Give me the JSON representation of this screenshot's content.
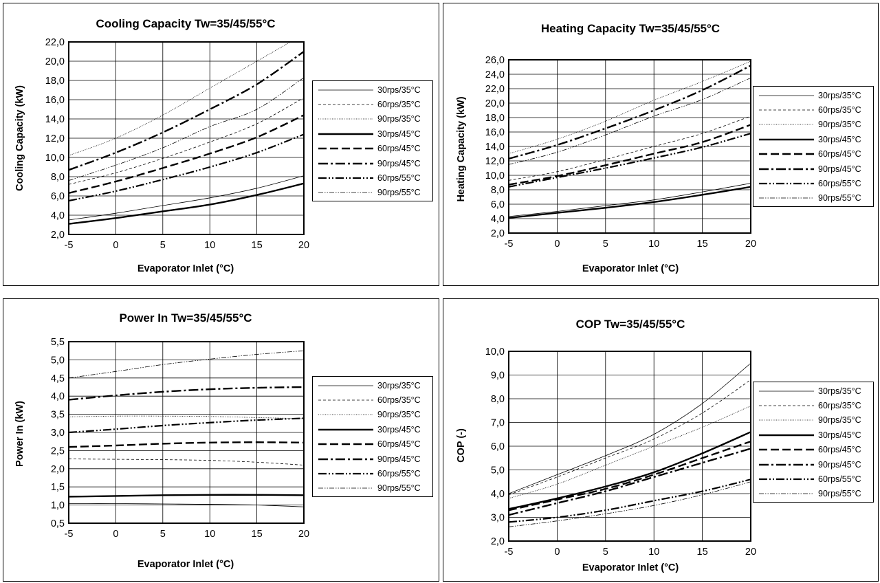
{
  "series_styles": [
    {
      "width": 0.8,
      "dash": ""
    },
    {
      "width": 0.8,
      "dash": "4,3"
    },
    {
      "width": 0.8,
      "dash": "1,1.5"
    },
    {
      "width": 2.4,
      "dash": ""
    },
    {
      "width": 2.4,
      "dash": "12,5"
    },
    {
      "width": 2.4,
      "dash": "14,4,3,4"
    },
    {
      "width": 2.2,
      "dash": "12,3,2,3,2,3"
    },
    {
      "width": 0.8,
      "dash": "7,2,1.5,2,1.5,2"
    }
  ],
  "chart_data": [
    {
      "type": "line",
      "title": "Cooling Capacity Tw=35/45/55°C",
      "xlabel": "Evaporator Inlet (°C)",
      "ylabel": "Cooling Capacity (kW)",
      "xlim": [
        -5,
        20
      ],
      "ylim": [
        2,
        22
      ],
      "x_ticks": [
        "-5",
        "0",
        "5",
        "10",
        "15",
        "20"
      ],
      "y_ticks": [
        "2,0",
        "4,0",
        "6,0",
        "8,0",
        "10,0",
        "12,0",
        "14,0",
        "16,0",
        "18,0",
        "20,0",
        "22,0"
      ],
      "grid": true,
      "legend_position": "right",
      "x": [
        -5,
        0,
        5,
        10,
        15,
        20
      ],
      "series": [
        {
          "name": "30rps/35°C",
          "values": [
            3.5,
            4.2,
            5.0,
            5.8,
            6.8,
            8.1
          ]
        },
        {
          "name": "60rps/35°C",
          "values": [
            7.2,
            8.4,
            9.9,
            11.6,
            13.5,
            16.2
          ]
        },
        {
          "name": "90rps/35°C",
          "values": [
            10.2,
            12.0,
            14.4,
            17.2,
            20.0,
            22.8
          ]
        },
        {
          "name": "30rps/45°C",
          "values": [
            3.1,
            3.7,
            4.4,
            5.1,
            6.1,
            7.3
          ]
        },
        {
          "name": "60rps/45°C",
          "values": [
            6.3,
            7.5,
            8.9,
            10.4,
            12.1,
            14.4
          ]
        },
        {
          "name": "90rps/45°C",
          "values": [
            8.7,
            10.5,
            12.6,
            15.0,
            17.6,
            21.0
          ]
        },
        {
          "name": "60rps/55°C",
          "values": [
            5.5,
            6.5,
            7.7,
            9.0,
            10.5,
            12.4
          ]
        },
        {
          "name": "90rps/55°C",
          "values": [
            7.6,
            9.2,
            11.0,
            13.2,
            15.0,
            18.3
          ]
        }
      ]
    },
    {
      "type": "line",
      "title": "Heating Capacity Tw=35/45/55°C",
      "xlabel": "Evaporator Inlet (°C)",
      "ylabel": "Heating Capacity (kW)",
      "xlim": [
        -5,
        20
      ],
      "ylim": [
        2,
        26
      ],
      "x_ticks": [
        "-5",
        "0",
        "5",
        "10",
        "15",
        "20"
      ],
      "y_ticks": [
        "2,0",
        "4,0",
        "6,0",
        "8,0",
        "10,0",
        "12,0",
        "14,0",
        "16,0",
        "18,0",
        "20,0",
        "22,0",
        "24,0",
        "26,0"
      ],
      "grid": true,
      "legend_position": "right",
      "x": [
        -5,
        0,
        5,
        10,
        15,
        20
      ],
      "series": [
        {
          "name": "30rps/35°C",
          "values": [
            4.3,
            5.0,
            5.8,
            6.6,
            7.7,
            8.9
          ]
        },
        {
          "name": "60rps/35°C",
          "values": [
            9.3,
            10.5,
            12.2,
            14.0,
            15.8,
            18.2
          ]
        },
        {
          "name": "90rps/35°C",
          "values": [
            13.0,
            15.0,
            17.5,
            20.4,
            23.0,
            25.8
          ]
        },
        {
          "name": "30rps/45°C",
          "values": [
            4.1,
            4.8,
            5.5,
            6.3,
            7.3,
            8.4
          ]
        },
        {
          "name": "60rps/45°C",
          "values": [
            8.7,
            9.9,
            11.4,
            13.0,
            14.6,
            17.0
          ]
        },
        {
          "name": "90rps/45°C",
          "values": [
            12.3,
            14.2,
            16.5,
            19.0,
            21.8,
            25.2
          ]
        },
        {
          "name": "60rps/55°C",
          "values": [
            8.4,
            9.7,
            11.0,
            12.4,
            13.9,
            15.8
          ]
        },
        {
          "name": "90rps/55°C",
          "values": [
            11.5,
            13.2,
            15.6,
            18.2,
            20.5,
            23.5
          ]
        }
      ]
    },
    {
      "type": "line",
      "title": "Power In Tw=35/45/55°C",
      "xlabel": "Evaporator Inlet (°C)",
      "ylabel": "Power In (kW)",
      "xlim": [
        -5,
        20
      ],
      "ylim": [
        0.5,
        5.5
      ],
      "x_ticks": [
        "-5",
        "0",
        "5",
        "10",
        "15",
        "20"
      ],
      "y_ticks": [
        "0,5",
        "1,0",
        "1,5",
        "2,0",
        "2,5",
        "3,0",
        "3,5",
        "4,0",
        "4,5",
        "5,0",
        "5,5"
      ],
      "grid": true,
      "legend_position": "right",
      "x": [
        -5,
        0,
        5,
        10,
        15,
        20
      ],
      "series": [
        {
          "name": "30rps/35°C",
          "values": [
            1.04,
            1.04,
            1.03,
            1.02,
            1.0,
            0.95
          ]
        },
        {
          "name": "60rps/35°C",
          "values": [
            2.27,
            2.26,
            2.25,
            2.23,
            2.18,
            2.1
          ]
        },
        {
          "name": "90rps/35°C",
          "values": [
            3.43,
            3.45,
            3.45,
            3.44,
            3.41,
            3.38
          ]
        },
        {
          "name": "30rps/45°C",
          "values": [
            1.23,
            1.25,
            1.27,
            1.28,
            1.28,
            1.27
          ]
        },
        {
          "name": "60rps/45°C",
          "values": [
            2.6,
            2.64,
            2.69,
            2.72,
            2.73,
            2.72
          ]
        },
        {
          "name": "90rps/45°C",
          "values": [
            3.9,
            4.02,
            4.12,
            4.19,
            4.23,
            4.25
          ]
        },
        {
          "name": "60rps/55°C",
          "values": [
            3.0,
            3.09,
            3.19,
            3.27,
            3.34,
            3.39
          ]
        },
        {
          "name": "90rps/55°C",
          "values": [
            4.5,
            4.68,
            4.87,
            5.02,
            5.15,
            5.25
          ]
        }
      ]
    },
    {
      "type": "line",
      "title": "COP Tw=35/45/55°C",
      "xlabel": "Evaporator Inlet (°C)",
      "ylabel": "COP (-)",
      "xlim": [
        -5,
        20
      ],
      "ylim": [
        2,
        10
      ],
      "x_ticks": [
        "-5",
        "0",
        "5",
        "10",
        "15",
        "20"
      ],
      "y_ticks": [
        "2,0",
        "3,0",
        "4,0",
        "5,0",
        "6,0",
        "7,0",
        "8,0",
        "9,0",
        "10,0"
      ],
      "grid": true,
      "legend_position": "right",
      "x": [
        -5,
        0,
        5,
        10,
        15,
        20
      ],
      "series": [
        {
          "name": "30rps/35°C",
          "values": [
            4.0,
            4.8,
            5.6,
            6.5,
            7.8,
            9.5
          ]
        },
        {
          "name": "60rps/35°C",
          "values": [
            3.95,
            4.7,
            5.5,
            6.3,
            7.4,
            8.8
          ]
        },
        {
          "name": "90rps/35°C",
          "values": [
            3.8,
            4.4,
            5.2,
            6.0,
            6.8,
            7.7
          ]
        },
        {
          "name": "30rps/45°C",
          "values": [
            3.35,
            3.8,
            4.3,
            4.9,
            5.7,
            6.6
          ]
        },
        {
          "name": "60rps/45°C",
          "values": [
            3.3,
            3.75,
            4.2,
            4.8,
            5.5,
            6.2
          ]
        },
        {
          "name": "90rps/45°C",
          "values": [
            3.1,
            3.6,
            4.1,
            4.7,
            5.3,
            5.9
          ]
        },
        {
          "name": "60rps/55°C",
          "values": [
            2.8,
            3.0,
            3.3,
            3.7,
            4.1,
            4.6
          ]
        },
        {
          "name": "90rps/55°C",
          "values": [
            2.6,
            2.85,
            3.15,
            3.5,
            3.95,
            4.5
          ]
        }
      ]
    }
  ]
}
